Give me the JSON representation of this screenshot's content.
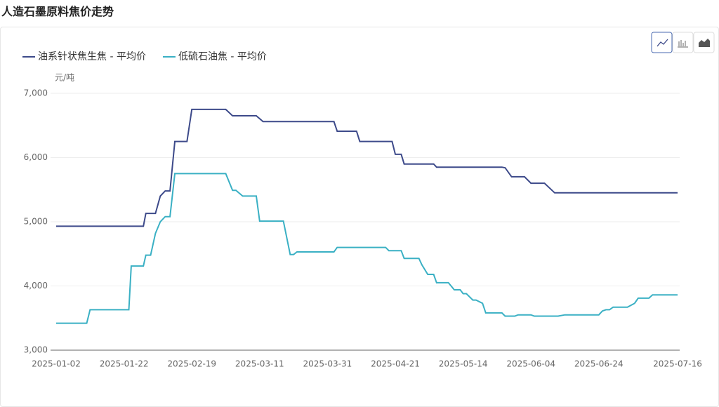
{
  "chart_data": {
    "type": "line",
    "title": "人造石墨原料焦价走势",
    "y_label": "元/吨",
    "xticks": [
      "2025-01-02",
      "2025-01-22",
      "2025-02-19",
      "2025-03-11",
      "2025-03-31",
      "2025-04-21",
      "2025-05-14",
      "2025-06-04",
      "2025-06-24",
      "2025-07-16"
    ],
    "ylim": [
      3000,
      7000
    ],
    "yticks": [
      {
        "value": 3000,
        "label": "3,000"
      },
      {
        "value": 4000,
        "label": "4,000"
      },
      {
        "value": 5000,
        "label": "5,000"
      },
      {
        "value": 6000,
        "label": "6,000"
      },
      {
        "value": 7000,
        "label": "7,000"
      }
    ],
    "grid": true,
    "legend": "top-left",
    "series": [
      {
        "name": "油系针状焦生焦 - 平均价",
        "color": "#3d4a8a",
        "x": [
          "2025-01-02",
          "2025-01-30",
          "2025-01-31",
          "2025-02-04",
          "2025-02-06",
          "2025-02-08",
          "2025-02-10",
          "2025-02-12",
          "2025-02-17",
          "2025-02-19",
          "2025-03-01",
          "2025-03-03",
          "2025-03-10",
          "2025-03-12",
          "2025-04-02",
          "2025-04-03",
          "2025-04-09",
          "2025-04-10",
          "2025-04-20",
          "2025-04-21",
          "2025-04-23",
          "2025-04-24",
          "2025-05-04",
          "2025-05-05",
          "2025-05-26",
          "2025-05-27",
          "2025-05-29",
          "2025-06-02",
          "2025-06-04",
          "2025-06-08",
          "2025-06-09",
          "2025-06-11",
          "2025-07-16"
        ],
        "values": [
          4930,
          4930,
          5130,
          5130,
          5400,
          5480,
          5480,
          6250,
          6250,
          6750,
          6750,
          6650,
          6650,
          6560,
          6560,
          6410,
          6410,
          6250,
          6250,
          6050,
          6050,
          5900,
          5900,
          5850,
          5850,
          5840,
          5700,
          5700,
          5600,
          5600,
          5550,
          5450,
          5450
        ]
      },
      {
        "name": "低硫石油焦 - 平均价",
        "color": "#3ab0c4",
        "x": [
          "2025-01-02",
          "2025-01-11",
          "2025-01-12",
          "2025-01-24",
          "2025-01-25",
          "2025-01-30",
          "2025-01-31",
          "2025-02-02",
          "2025-02-04",
          "2025-02-06",
          "2025-02-08",
          "2025-02-10",
          "2025-02-12",
          "2025-03-01",
          "2025-03-03",
          "2025-03-04",
          "2025-03-06",
          "2025-03-10",
          "2025-03-11",
          "2025-03-18",
          "2025-03-20",
          "2025-03-21",
          "2025-03-22",
          "2025-04-02",
          "2025-04-03",
          "2025-04-18",
          "2025-04-19",
          "2025-04-23",
          "2025-04-24",
          "2025-04-29",
          "2025-04-30",
          "2025-05-02",
          "2025-05-04",
          "2025-05-05",
          "2025-05-09",
          "2025-05-11",
          "2025-05-13",
          "2025-05-14",
          "2025-05-15",
          "2025-05-17",
          "2025-05-18",
          "2025-05-20",
          "2025-05-21",
          "2025-05-26",
          "2025-05-27",
          "2025-05-30",
          "2025-05-31",
          "2025-06-04",
          "2025-06-05",
          "2025-06-12",
          "2025-06-14",
          "2025-06-24",
          "2025-06-25",
          "2025-06-26",
          "2025-06-27",
          "2025-06-28",
          "2025-07-02",
          "2025-07-04",
          "2025-07-05",
          "2025-07-08",
          "2025-07-09",
          "2025-07-16"
        ],
        "values": [
          3420,
          3420,
          3630,
          3630,
          4310,
          4310,
          4480,
          4480,
          4820,
          5000,
          5080,
          5080,
          5750,
          5750,
          5490,
          5490,
          5400,
          5400,
          5010,
          5010,
          4490,
          4490,
          4530,
          4530,
          4600,
          4600,
          4550,
          4550,
          4430,
          4430,
          4330,
          4180,
          4180,
          4050,
          4050,
          3940,
          3940,
          3880,
          3880,
          3780,
          3780,
          3730,
          3580,
          3580,
          3530,
          3530,
          3550,
          3550,
          3530,
          3530,
          3550,
          3550,
          3610,
          3630,
          3630,
          3670,
          3670,
          3730,
          3810,
          3810,
          3860,
          3860
        ]
      }
    ]
  }
}
